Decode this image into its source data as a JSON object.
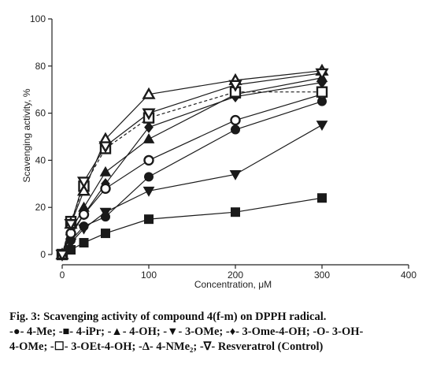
{
  "chart_data": {
    "type": "line",
    "xlabel": "Concentration, μM",
    "ylabel": "Scavenging activity, %",
    "xlim": [
      0,
      400
    ],
    "ylim": [
      0,
      100
    ],
    "xticks": [
      "0",
      "100",
      "200",
      "300",
      "400"
    ],
    "yticks": [
      "0",
      "20",
      "40",
      "60",
      "80",
      "100"
    ],
    "grid": false,
    "x": [
      0,
      10,
      25,
      50,
      100,
      200,
      300
    ],
    "series": [
      {
        "name": "4-Me",
        "marker": "filled-circle",
        "dashed": false,
        "values": [
          0,
          6,
          12,
          16,
          33,
          53,
          65
        ]
      },
      {
        "name": "4-iPr",
        "marker": "filled-square",
        "dashed": false,
        "values": [
          0,
          2,
          5,
          9,
          15,
          18,
          24
        ]
      },
      {
        "name": "4-OH",
        "marker": "filled-triangle-up",
        "dashed": false,
        "values": [
          0,
          10,
          20,
          35,
          49,
          68,
          75
        ]
      },
      {
        "name": "3-OMe",
        "marker": "filled-triangle-down",
        "dashed": false,
        "values": [
          0,
          5,
          11,
          18,
          27,
          34,
          55
        ]
      },
      {
        "name": "3-Ome-4-OH",
        "marker": "filled-diamond",
        "dashed": false,
        "values": [
          0,
          8,
          17,
          30,
          54,
          67,
          73
        ]
      },
      {
        "name": "3-OH-4-OMe",
        "marker": "open-circle",
        "dashed": false,
        "values": [
          0,
          9,
          17,
          28,
          40,
          57,
          68
        ]
      },
      {
        "name": "3-OEt-4-OH",
        "marker": "open-square",
        "dashed": true,
        "values": [
          0,
          14,
          29,
          45,
          58,
          69,
          69
        ]
      },
      {
        "name": "4-NMe2",
        "marker": "open-triangle-up",
        "dashed": false,
        "values": [
          0,
          13,
          27,
          49,
          68,
          74,
          78
        ]
      },
      {
        "name": "Resveratrol (Control)",
        "marker": "open-triangle-down",
        "dashed": false,
        "values": [
          0,
          13,
          31,
          46,
          60,
          72,
          77
        ]
      }
    ]
  },
  "caption": {
    "title": "Fig. 3: Scavenging activity of compound 4(f-m) on DPPH radical.",
    "legend_line1": "-●- 4-Me; -■- 4-iPr; -▲- 4-OH; -▼- 3-OMe; -♦- 3-Ome-4-OH; -O- 3-OH-",
    "legend_line2": "4-OMe; -☐- 3-OEt-4-OH; -Δ- 4-NMe₂; -∇- Resveratrol (Control)"
  }
}
